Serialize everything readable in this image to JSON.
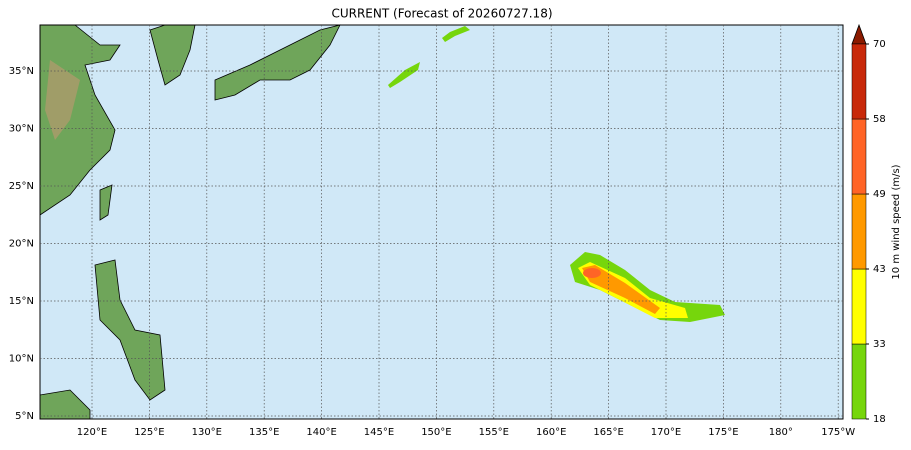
{
  "map": {
    "title": "CURRENT (Forecast of 20260727.18)",
    "lat_labels": [
      "35°N",
      "30°N",
      "25°N",
      "20°N",
      "15°N",
      "10°N",
      "5°N"
    ],
    "lon_labels": [
      "120°E",
      "125°E",
      "130°E",
      "135°E",
      "140°E",
      "145°E",
      "150°E",
      "155°E",
      "160°E",
      "165°E",
      "170°E",
      "175°E",
      "180°",
      "175°W"
    ],
    "colorbar": {
      "label": "10 m wind speed (m/s)",
      "ticks": [
        18,
        33,
        43,
        49,
        58,
        70
      ],
      "colors": [
        "#76d60c",
        "#ffff00",
        "#ff9900",
        "#ff6426",
        "#c8290a"
      ],
      "extend_color": "#8b1a00"
    }
  }
}
